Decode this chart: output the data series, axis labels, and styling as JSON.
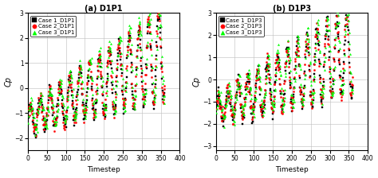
{
  "subplot1": {
    "title": "(a) D1P1",
    "ylabel": "Cp",
    "xlabel": "Timestep",
    "legend_labels": [
      "Case 1_D1P1",
      "Case 2_D1P1",
      "Case 3_D1P1"
    ],
    "ylim": [
      -2.5,
      3.0
    ],
    "xlim": [
      0,
      400
    ],
    "yticks": [
      -2,
      -1,
      0,
      1,
      2,
      3
    ],
    "xticks": [
      0,
      50,
      100,
      150,
      200,
      250,
      300,
      350,
      400
    ]
  },
  "subplot2": {
    "title": "(b) D1P3",
    "ylabel": "Cp",
    "xlabel": "Timestep",
    "legend_labels": [
      "Case 1_D1P3",
      "Case 2_D1P3",
      "Case 3_D1P3"
    ],
    "ylim": [
      -3.2,
      3.0
    ],
    "xlim": [
      0,
      400
    ],
    "yticks": [
      -3,
      -2,
      -1,
      0,
      1,
      2,
      3
    ],
    "xticks": [
      0,
      50,
      100,
      150,
      200,
      250,
      300,
      350,
      400
    ]
  },
  "colors": [
    "black",
    "red",
    "lime"
  ],
  "markers": [
    "s",
    "o",
    "^"
  ],
  "marker_size": 2.5,
  "background_color": "#ffffff",
  "grid_color": "#bbbbbb"
}
